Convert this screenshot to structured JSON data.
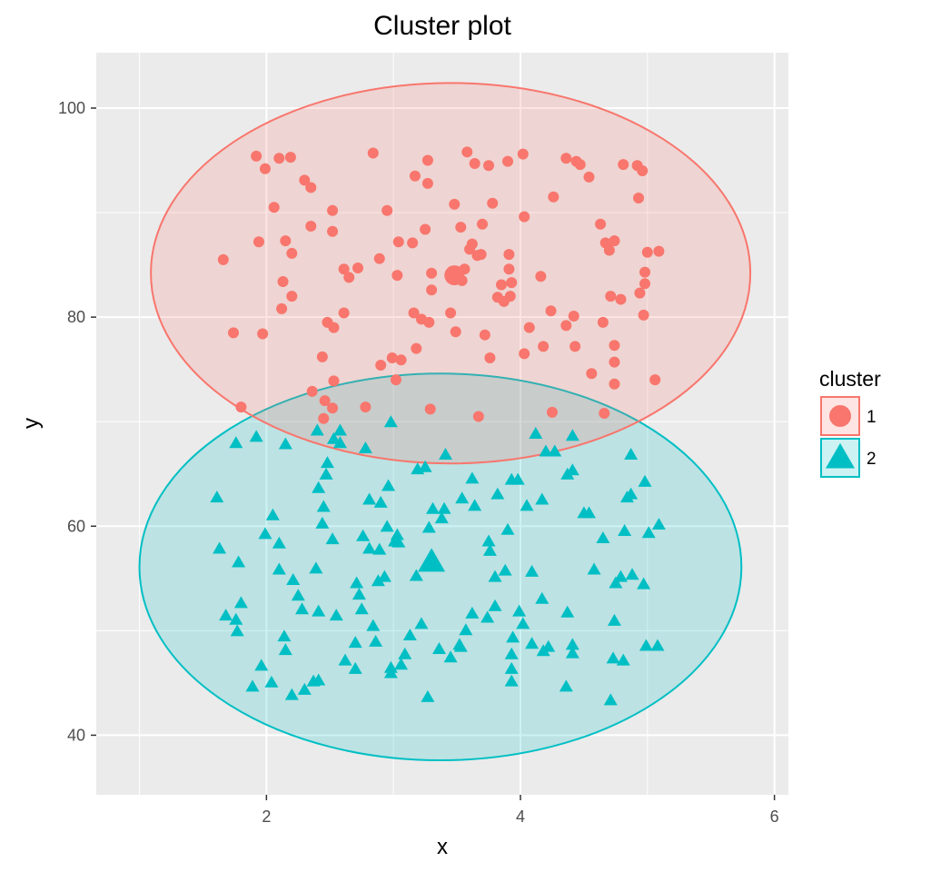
{
  "chart_data": {
    "type": "scatter",
    "title": "Cluster plot",
    "xlabel": "x",
    "ylabel": "y",
    "xlim": [
      0.66,
      6.11
    ],
    "ylim": [
      34.3,
      105.3
    ],
    "x_ticks": [
      2,
      4,
      6
    ],
    "x_minor_ticks": [
      1,
      3,
      5
    ],
    "y_ticks": [
      40,
      60,
      80,
      100
    ],
    "y_minor_ticks": [
      50,
      70,
      90
    ],
    "grid": true,
    "legend": {
      "title": "cluster",
      "placement": "right",
      "entries": [
        {
          "label": "1",
          "shape": "circle",
          "color": "#F8766D"
        },
        {
          "label": "2",
          "shape": "triangle",
          "color": "#00BFC4"
        }
      ]
    },
    "series": [
      {
        "name": "1",
        "color": "#F8766D",
        "marker": "circle",
        "ellipse": {
          "cx": 3.45,
          "cy": 84.2,
          "rx": 2.36,
          "ry": 18.2
        },
        "centroid": [
          3.48,
          84.0
        ],
        "points": [
          [
            1.66,
            85.5
          ],
          [
            1.74,
            78.5
          ],
          [
            1.8,
            71.4
          ],
          [
            1.92,
            95.4
          ],
          [
            1.94,
            87.2
          ],
          [
            1.97,
            78.4
          ],
          [
            1.99,
            94.2
          ],
          [
            2.06,
            90.5
          ],
          [
            2.1,
            95.2
          ],
          [
            2.12,
            80.8
          ],
          [
            2.13,
            83.4
          ],
          [
            2.15,
            87.3
          ],
          [
            2.19,
            95.3
          ],
          [
            2.2,
            82.0
          ],
          [
            2.2,
            86.1
          ],
          [
            2.3,
            93.1
          ],
          [
            2.35,
            92.4
          ],
          [
            2.35,
            88.7
          ],
          [
            2.36,
            72.9
          ],
          [
            2.44,
            76.2
          ],
          [
            2.45,
            70.3
          ],
          [
            2.46,
            72.0
          ],
          [
            2.48,
            79.5
          ],
          [
            2.52,
            71.3
          ],
          [
            2.52,
            88.2
          ],
          [
            2.52,
            90.2
          ],
          [
            2.53,
            79.0
          ],
          [
            2.53,
            73.9
          ],
          [
            2.61,
            84.6
          ],
          [
            2.61,
            80.4
          ],
          [
            2.65,
            83.8
          ],
          [
            2.72,
            84.7
          ],
          [
            2.78,
            71.4
          ],
          [
            2.84,
            95.7
          ],
          [
            2.89,
            85.6
          ],
          [
            2.9,
            75.4
          ],
          [
            2.95,
            90.2
          ],
          [
            2.99,
            76.1
          ],
          [
            3.02,
            74.0
          ],
          [
            3.03,
            84.0
          ],
          [
            3.04,
            87.2
          ],
          [
            3.06,
            75.9
          ],
          [
            3.15,
            87.1
          ],
          [
            3.16,
            80.4
          ],
          [
            3.17,
            93.5
          ],
          [
            3.18,
            77.0
          ],
          [
            3.22,
            79.8
          ],
          [
            3.25,
            88.4
          ],
          [
            3.27,
            95.0
          ],
          [
            3.27,
            92.8
          ],
          [
            3.28,
            79.5
          ],
          [
            3.29,
            71.2
          ],
          [
            3.3,
            82.6
          ],
          [
            3.3,
            84.2
          ],
          [
            3.45,
            80.4
          ],
          [
            3.48,
            90.8
          ],
          [
            3.49,
            78.6
          ],
          [
            3.53,
            88.6
          ],
          [
            3.54,
            83.5
          ],
          [
            3.56,
            84.6
          ],
          [
            3.58,
            95.8
          ],
          [
            3.6,
            86.5
          ],
          [
            3.62,
            87.0
          ],
          [
            3.64,
            94.7
          ],
          [
            3.66,
            85.9
          ],
          [
            3.67,
            70.5
          ],
          [
            3.69,
            86.0
          ],
          [
            3.7,
            88.9
          ],
          [
            3.72,
            78.3
          ],
          [
            3.75,
            94.5
          ],
          [
            3.76,
            76.1
          ],
          [
            3.78,
            90.9
          ],
          [
            3.82,
            81.9
          ],
          [
            3.85,
            83.1
          ],
          [
            3.87,
            81.5
          ],
          [
            3.9,
            94.9
          ],
          [
            3.91,
            84.6
          ],
          [
            3.91,
            86.0
          ],
          [
            3.92,
            82.0
          ],
          [
            3.93,
            83.3
          ],
          [
            4.02,
            95.6
          ],
          [
            4.03,
            89.6
          ],
          [
            4.03,
            76.5
          ],
          [
            4.07,
            79.0
          ],
          [
            4.16,
            83.9
          ],
          [
            4.18,
            77.2
          ],
          [
            4.24,
            80.6
          ],
          [
            4.25,
            70.9
          ],
          [
            4.26,
            91.5
          ],
          [
            4.36,
            95.2
          ],
          [
            4.36,
            79.2
          ],
          [
            4.42,
            80.1
          ],
          [
            4.43,
            77.2
          ],
          [
            4.44,
            94.9
          ],
          [
            4.47,
            94.6
          ],
          [
            4.54,
            93.4
          ],
          [
            4.56,
            74.6
          ],
          [
            4.63,
            88.9
          ],
          [
            4.65,
            79.5
          ],
          [
            4.66,
            70.8
          ],
          [
            4.67,
            87.1
          ],
          [
            4.7,
            86.4
          ],
          [
            4.71,
            82.0
          ],
          [
            4.74,
            87.3
          ],
          [
            4.74,
            77.3
          ],
          [
            4.74,
            75.7
          ],
          [
            4.74,
            73.6
          ],
          [
            4.79,
            81.7
          ],
          [
            4.81,
            94.6
          ],
          [
            4.92,
            94.5
          ],
          [
            4.93,
            91.4
          ],
          [
            4.94,
            82.3
          ],
          [
            4.96,
            94.0
          ],
          [
            4.97,
            80.2
          ],
          [
            4.98,
            84.3
          ],
          [
            4.98,
            83.2
          ],
          [
            5.0,
            86.2
          ],
          [
            5.06,
            74.0
          ],
          [
            5.09,
            86.3
          ]
        ]
      },
      {
        "name": "2",
        "color": "#00BFC4",
        "marker": "triangle",
        "ellipse": {
          "cx": 3.37,
          "cy": 56.1,
          "rx": 2.37,
          "ry": 18.5
        },
        "centroid": [
          3.3,
          56.5
        ],
        "points": [
          [
            1.61,
            62.7
          ],
          [
            1.63,
            57.8
          ],
          [
            1.68,
            51.4
          ],
          [
            1.76,
            51.0
          ],
          [
            1.76,
            67.9
          ],
          [
            1.77,
            49.9
          ],
          [
            1.78,
            56.5
          ],
          [
            1.8,
            52.6
          ],
          [
            1.89,
            44.6
          ],
          [
            1.92,
            68.5
          ],
          [
            1.96,
            46.6
          ],
          [
            1.99,
            59.2
          ],
          [
            2.04,
            45.0
          ],
          [
            2.05,
            61.0
          ],
          [
            2.1,
            55.8
          ],
          [
            2.1,
            58.3
          ],
          [
            2.14,
            49.4
          ],
          [
            2.15,
            48.1
          ],
          [
            2.15,
            67.8
          ],
          [
            2.2,
            43.8
          ],
          [
            2.21,
            54.8
          ],
          [
            2.25,
            53.3
          ],
          [
            2.28,
            52.0
          ],
          [
            2.3,
            44.3
          ],
          [
            2.37,
            45.1
          ],
          [
            2.39,
            55.9
          ],
          [
            2.4,
            69.1
          ],
          [
            2.41,
            45.2
          ],
          [
            2.41,
            51.8
          ],
          [
            2.41,
            63.6
          ],
          [
            2.44,
            60.2
          ],
          [
            2.45,
            61.8
          ],
          [
            2.47,
            64.9
          ],
          [
            2.48,
            66.0
          ],
          [
            2.52,
            58.7
          ],
          [
            2.53,
            68.3
          ],
          [
            2.55,
            51.4
          ],
          [
            2.58,
            67.9
          ],
          [
            2.58,
            69.1
          ],
          [
            2.62,
            47.1
          ],
          [
            2.7,
            48.8
          ],
          [
            2.7,
            46.3
          ],
          [
            2.71,
            54.5
          ],
          [
            2.73,
            53.4
          ],
          [
            2.75,
            52.0
          ],
          [
            2.76,
            59.0
          ],
          [
            2.78,
            67.4
          ],
          [
            2.81,
            57.8
          ],
          [
            2.81,
            62.5
          ],
          [
            2.84,
            50.4
          ],
          [
            2.86,
            48.9
          ],
          [
            2.88,
            54.7
          ],
          [
            2.89,
            57.7
          ],
          [
            2.9,
            62.2
          ],
          [
            2.93,
            55.1
          ],
          [
            2.95,
            59.9
          ],
          [
            2.96,
            63.8
          ],
          [
            2.98,
            45.9
          ],
          [
            2.98,
            46.4
          ],
          [
            2.98,
            69.9
          ],
          [
            3.01,
            58.5
          ],
          [
            3.03,
            59.1
          ],
          [
            3.04,
            58.4
          ],
          [
            3.06,
            46.7
          ],
          [
            3.09,
            47.7
          ],
          [
            3.13,
            49.5
          ],
          [
            3.18,
            55.2
          ],
          [
            3.19,
            65.4
          ],
          [
            3.22,
            50.6
          ],
          [
            3.25,
            65.6
          ],
          [
            3.27,
            43.6
          ],
          [
            3.28,
            59.8
          ],
          [
            3.31,
            61.6
          ],
          [
            3.36,
            48.2
          ],
          [
            3.38,
            60.7
          ],
          [
            3.4,
            61.6
          ],
          [
            3.41,
            66.8
          ],
          [
            3.45,
            47.4
          ],
          [
            3.52,
            48.6
          ],
          [
            3.53,
            48.4
          ],
          [
            3.54,
            62.6
          ],
          [
            3.57,
            50.0
          ],
          [
            3.62,
            51.6
          ],
          [
            3.62,
            64.5
          ],
          [
            3.64,
            61.9
          ],
          [
            3.74,
            51.2
          ],
          [
            3.75,
            58.5
          ],
          [
            3.76,
            57.6
          ],
          [
            3.8,
            52.3
          ],
          [
            3.8,
            55.1
          ],
          [
            3.82,
            63.0
          ],
          [
            3.88,
            55.7
          ],
          [
            3.9,
            59.6
          ],
          [
            3.93,
            45.1
          ],
          [
            3.93,
            46.3
          ],
          [
            3.93,
            47.7
          ],
          [
            3.93,
            64.4
          ],
          [
            3.94,
            49.3
          ],
          [
            3.98,
            64.4
          ],
          [
            3.99,
            51.8
          ],
          [
            4.02,
            50.6
          ],
          [
            4.05,
            61.9
          ],
          [
            4.09,
            48.7
          ],
          [
            4.09,
            55.6
          ],
          [
            4.12,
            68.8
          ],
          [
            4.17,
            53.0
          ],
          [
            4.17,
            62.5
          ],
          [
            4.18,
            48.0
          ],
          [
            4.2,
            67.1
          ],
          [
            4.22,
            48.4
          ],
          [
            4.27,
            67.1
          ],
          [
            4.36,
            44.6
          ],
          [
            4.37,
            51.7
          ],
          [
            4.37,
            64.9
          ],
          [
            4.41,
            47.8
          ],
          [
            4.41,
            48.6
          ],
          [
            4.41,
            65.3
          ],
          [
            4.41,
            68.6
          ],
          [
            4.5,
            61.2
          ],
          [
            4.54,
            61.2
          ],
          [
            4.58,
            55.8
          ],
          [
            4.65,
            58.8
          ],
          [
            4.71,
            43.3
          ],
          [
            4.73,
            47.3
          ],
          [
            4.74,
            50.9
          ],
          [
            4.75,
            54.5
          ],
          [
            4.79,
            55.1
          ],
          [
            4.81,
            47.1
          ],
          [
            4.82,
            59.5
          ],
          [
            4.84,
            62.7
          ],
          [
            4.87,
            66.8
          ],
          [
            4.87,
            63.0
          ],
          [
            4.88,
            55.3
          ],
          [
            4.97,
            54.4
          ],
          [
            4.98,
            64.2
          ],
          [
            4.99,
            48.5
          ],
          [
            5.01,
            59.3
          ],
          [
            5.08,
            48.5
          ],
          [
            5.09,
            60.1
          ]
        ]
      }
    ]
  }
}
